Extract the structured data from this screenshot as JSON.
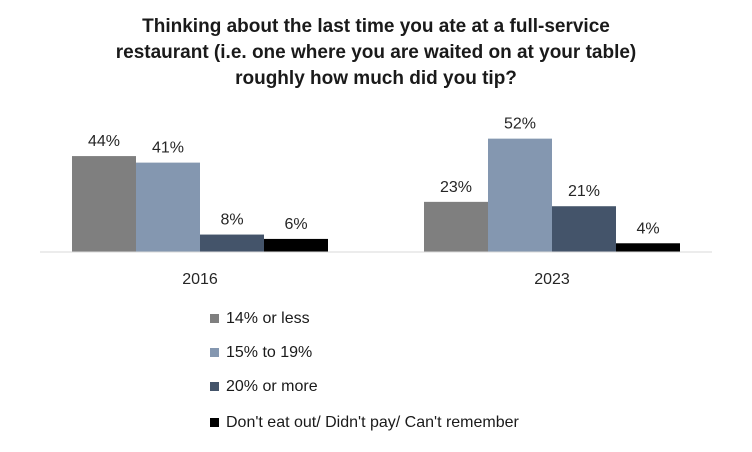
{
  "chart_data": {
    "type": "bar",
    "title_lines": [
      "Thinking about the last time you ate at a full-service",
      "restaurant (i.e. one where you are waited on at your table)",
      "roughly how much did you tip?"
    ],
    "categories": [
      "2016",
      "2023"
    ],
    "series": [
      {
        "name": "14% or less",
        "values": [
          44,
          23
        ],
        "labels": [
          "44%",
          "23%"
        ],
        "color": "#7f7f7f"
      },
      {
        "name": "15% to 19%",
        "values": [
          41,
          52
        ],
        "labels": [
          "41%",
          "52%"
        ],
        "color": "#8497b0"
      },
      {
        "name": "20% or more",
        "values": [
          8,
          21
        ],
        "labels": [
          "8%",
          "21%"
        ],
        "color": "#44546a"
      },
      {
        "name": "Don't eat out/ Didn't pay/ Can't remember",
        "values": [
          6,
          4
        ],
        "labels": [
          "6%",
          "4%"
        ],
        "color": "#000000"
      }
    ],
    "ylim": [
      0,
      60
    ],
    "grid": false,
    "legend_position": "bottom"
  }
}
